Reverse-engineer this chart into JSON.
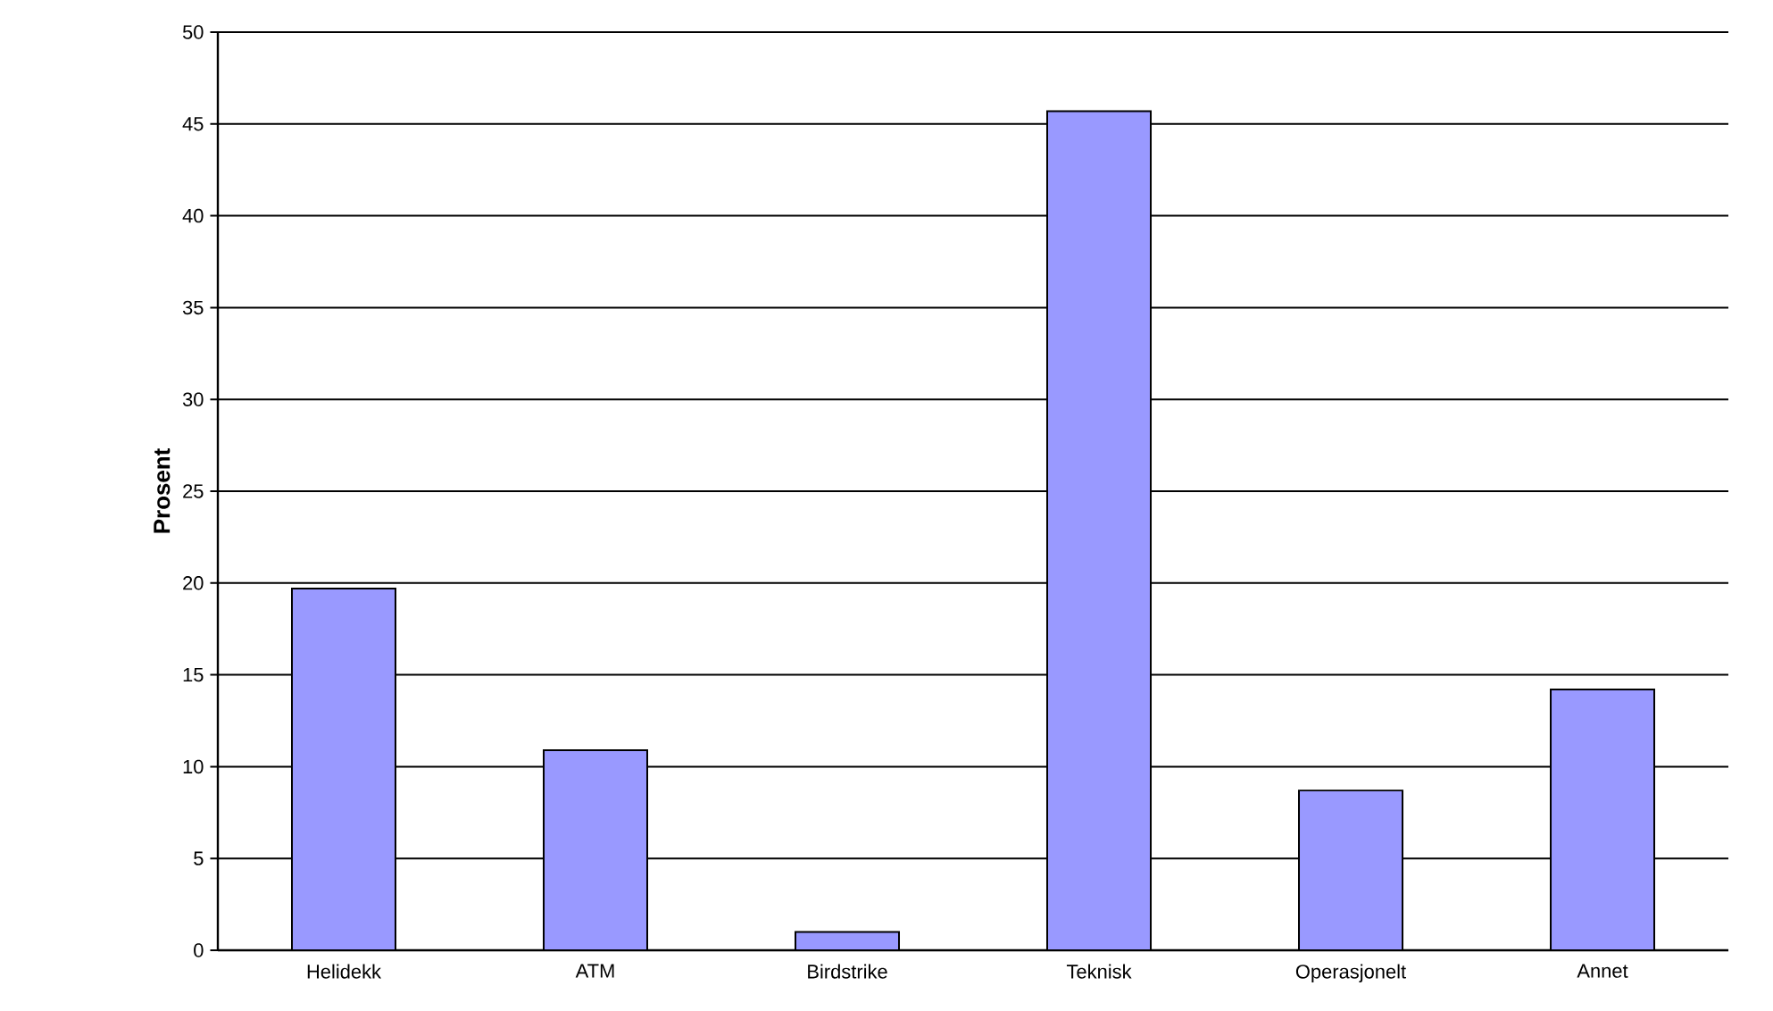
{
  "chart_data": {
    "type": "bar",
    "ylabel": "Prosent",
    "categories": [
      "Helidekk",
      "ATM",
      "Birdstrike",
      "Teknisk",
      "Operasjonelt",
      "Annet"
    ],
    "values": [
      19.7,
      10.9,
      1.0,
      45.7,
      8.7,
      14.2
    ],
    "color": "#9999ff",
    "ylim": [
      0,
      50
    ],
    "yticks": [
      0,
      5,
      10,
      15,
      20,
      25,
      30,
      35,
      40,
      45,
      50
    ],
    "grid": "y"
  }
}
